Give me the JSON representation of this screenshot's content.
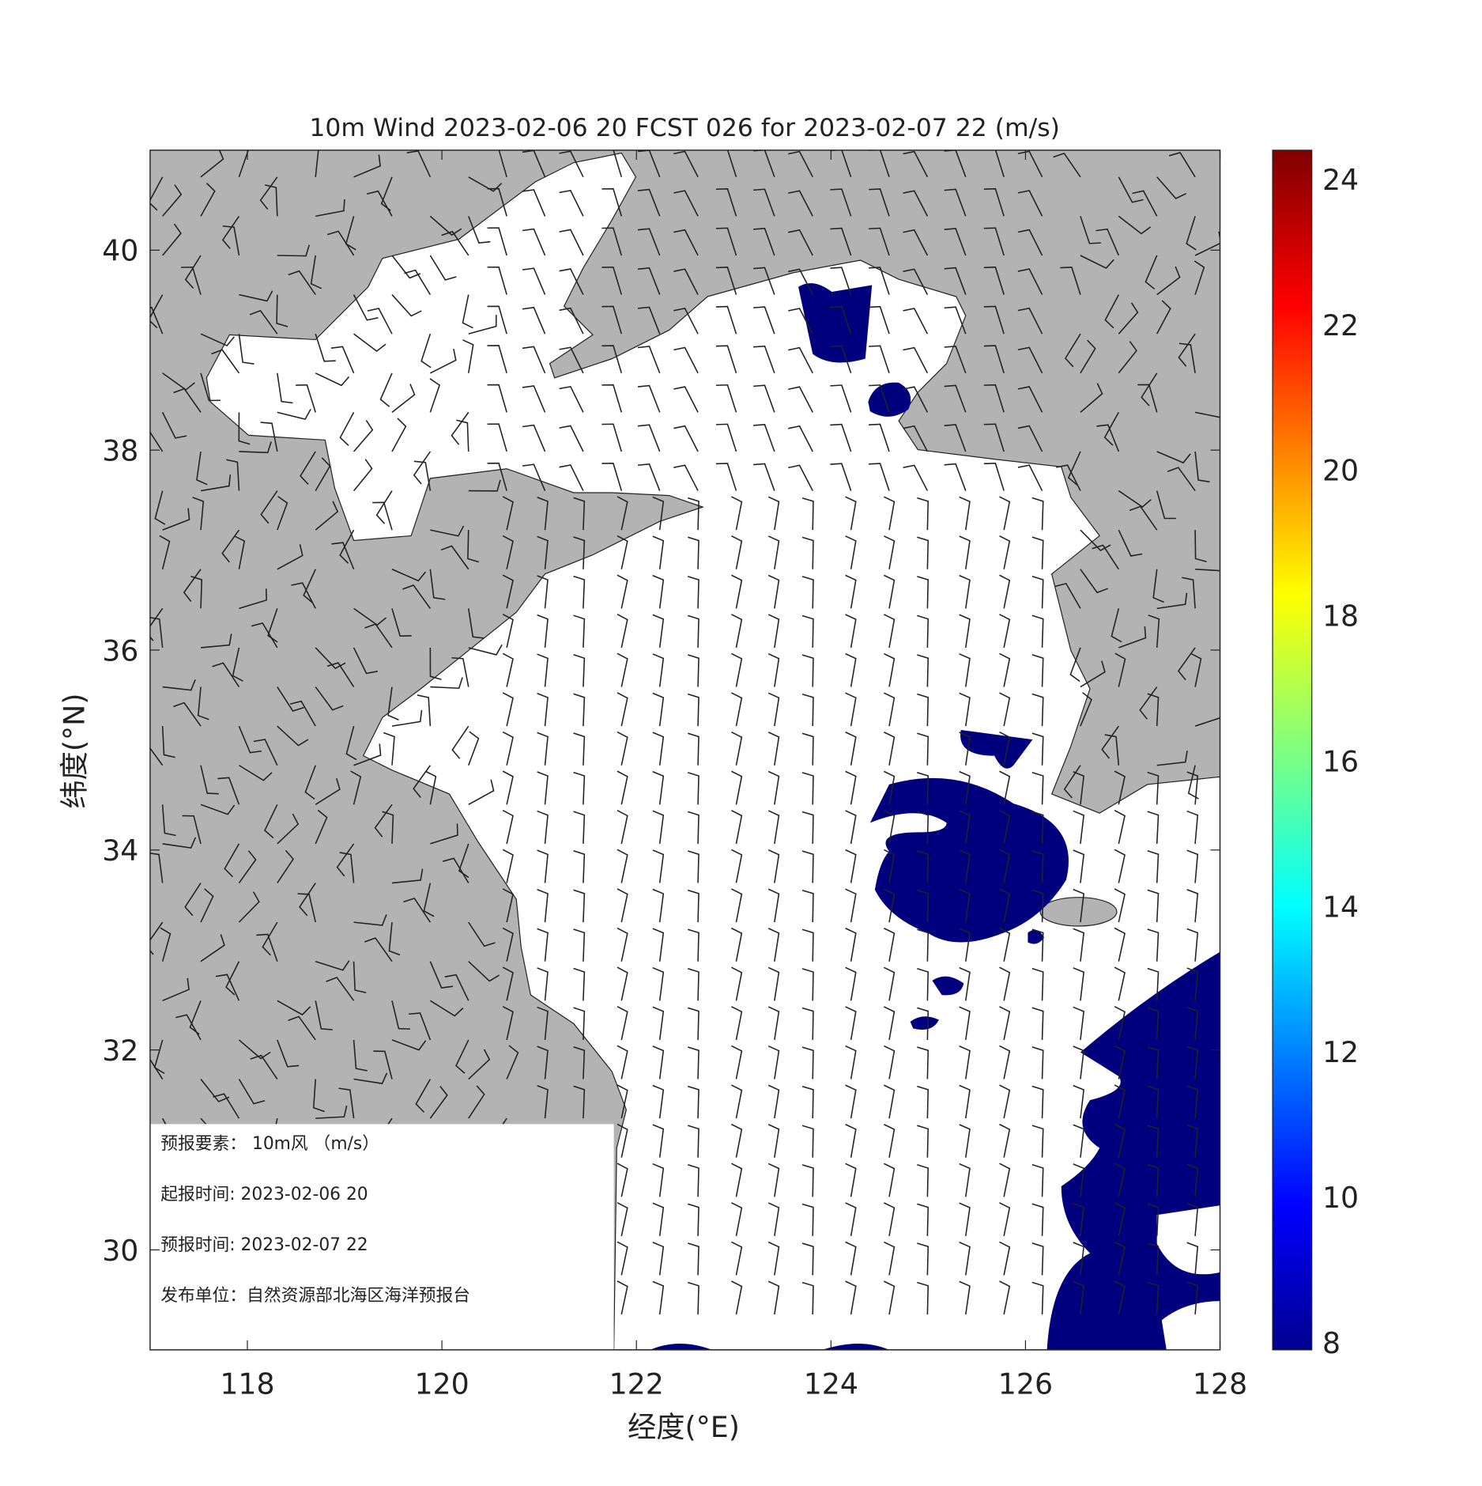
{
  "chart_data": {
    "type": "map",
    "title": "10m Wind 2023-02-06 20 FCST 026 for 2023-02-07 22 (m/s)",
    "x_label": "经度(°E)",
    "y_label": "纬度(°N)",
    "xlim": [
      117,
      128
    ],
    "xticks": [
      118,
      120,
      122,
      124,
      126,
      128
    ],
    "ylim": [
      29,
      41
    ],
    "yticks": [
      30,
      32,
      34,
      36,
      38,
      40
    ],
    "colorbar": {
      "lim": [
        7.9,
        24.4
      ],
      "ticks": [
        8,
        10,
        12,
        14,
        16,
        18,
        20,
        22,
        24
      ]
    },
    "info": [
      "预报要素：  10m风  （m/s）",
      "起报时间: 2023-02-06 20",
      "预报时间: 2023-02-07 22",
      "发布单位：自然资源部北海区海洋预报台"
    ]
  }
}
